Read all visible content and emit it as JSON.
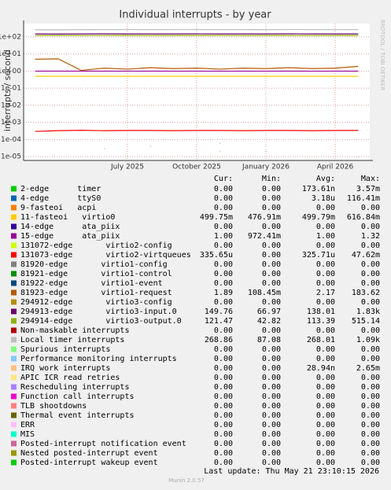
{
  "chart_data": {
    "type": "line",
    "title": "Individual interrupts - by year",
    "y_label": "interrupts / second",
    "side_label": "RRDTOOL / TOBI OETIKER",
    "log_scale": true,
    "grid": true,
    "categories": [
      null,
      null,
      null,
      null,
      "July 2025",
      null,
      null,
      "October 2025",
      null,
      null,
      "January 2026",
      null,
      null,
      "April 2026",
      null
    ],
    "ylim": [
      6e-06,
      600
    ],
    "yticks": [
      {
        "value": 100,
        "label": "1e+02"
      },
      {
        "value": 10,
        "label": "1e+01"
      },
      {
        "value": 1,
        "label": "1e+00"
      },
      {
        "value": 0.1,
        "label": "1e-01"
      },
      {
        "value": 0.01,
        "label": "1e-02"
      },
      {
        "value": 0.001,
        "label": "1e-03"
      },
      {
        "value": 0.0001,
        "label": "1e-04"
      },
      {
        "value": 1e-05,
        "label": "1e-05"
      }
    ],
    "columns": [
      "Cur:",
      "Min:",
      "Avg:",
      "Max:"
    ],
    "series": [
      {
        "name": "2-edge      timer",
        "color": "#00cc00",
        "cur": "0.00",
        "min": "0.00",
        "avg": "173.61n",
        "max": "3.57m",
        "values": [
          null,
          null,
          null,
          null,
          1e-05,
          null,
          null,
          null,
          2e-05,
          null,
          2e-05,
          null,
          null,
          null,
          1e-05
        ]
      },
      {
        "name": "4-edge      ttyS0",
        "color": "#0066b3",
        "cur": "0.00",
        "min": "0.00",
        "avg": "3.18u",
        "max": "116.41m",
        "values": [
          null,
          null,
          null,
          3e-05,
          null,
          4e-05,
          null,
          null,
          6e-05,
          null,
          null,
          null,
          null,
          null,
          null
        ]
      },
      {
        "name": "9-fasteoi   acpi",
        "color": "#ff8000",
        "cur": "0.00",
        "min": "0.00",
        "avg": "0.00",
        "max": "0.00"
      },
      {
        "name": "11-fasteoi   virtio0",
        "color": "#ffcc00",
        "cur": "499.75m",
        "min": "476.91m",
        "avg": "499.79m",
        "max": "616.84m",
        "values": [
          0.5,
          0.5,
          0.5,
          0.5,
          0.5,
          0.5,
          0.5,
          0.5,
          0.5,
          0.5,
          0.5,
          0.5,
          0.5,
          0.5,
          0.5
        ]
      },
      {
        "name": "14-edge      ata_piix",
        "color": "#330099",
        "cur": "0.00",
        "min": "0.00",
        "avg": "0.00",
        "max": "0.00"
      },
      {
        "name": "15-edge      ata_piix",
        "color": "#990099",
        "cur": "1.00",
        "min": "972.41m",
        "avg": "1.00",
        "max": "1.32",
        "values": [
          1,
          1,
          1,
          1,
          1,
          1,
          1,
          1,
          1,
          1,
          1,
          1,
          1,
          1,
          1
        ]
      },
      {
        "name": "131072-edge       virtio2-config",
        "color": "#ccff00",
        "cur": "0.00",
        "min": "0.00",
        "avg": "0.00",
        "max": "0.00"
      },
      {
        "name": "131073-edge       virtio2-virtqueues",
        "color": "#ff0000",
        "cur": "335.65u",
        "min": "0.00",
        "avg": "325.71u",
        "max": "47.62m",
        "values": [
          0.0003,
          0.00033,
          0.00035,
          0.00033,
          0.00034,
          0.00034,
          0.00033,
          0.00034,
          0.00034,
          0.00033,
          0.00034,
          0.00034,
          0.00033,
          0.00034,
          0.00034
        ]
      },
      {
        "name": "81920-edge       virtio1-config",
        "color": "#808080",
        "cur": "0.00",
        "min": "0.00",
        "avg": "0.00",
        "max": "0.00"
      },
      {
        "name": "81921-edge       virtio1-control",
        "color": "#008f00",
        "cur": "0.00",
        "min": "0.00",
        "avg": "0.00",
        "max": "0.00"
      },
      {
        "name": "81922-edge       virtio1-event",
        "color": "#00487d",
        "cur": "0.00",
        "min": "0.00",
        "avg": "0.00",
        "max": "0.00"
      },
      {
        "name": "81923-edge       virtio1-request",
        "color": "#b35a00",
        "cur": "1.89",
        "min": "108.45m",
        "avg": "2.17",
        "max": "183.62",
        "values": [
          5,
          5.2,
          1.1,
          1.5,
          1.3,
          1.6,
          1.4,
          1.5,
          1.3,
          1.5,
          1.4,
          1.6,
          1.4,
          1.5,
          1.9
        ]
      },
      {
        "name": "294912-edge       virtio3-config",
        "color": "#b38f00",
        "cur": "0.00",
        "min": "0.00",
        "avg": "0.00",
        "max": "0.00"
      },
      {
        "name": "294913-edge       virtio3-input.0",
        "color": "#6b006b",
        "cur": "149.76",
        "min": "66.97",
        "avg": "138.01",
        "max": "1.83k",
        "values": [
          150,
          148,
          150,
          152,
          150,
          149,
          150,
          151,
          150,
          150,
          150,
          152,
          149,
          150,
          150
        ]
      },
      {
        "name": "294914-edge       virtio3-output.0",
        "color": "#8fb300",
        "cur": "121.47",
        "min": "42.82",
        "avg": "113.39",
        "max": "515.14",
        "values": [
          120,
          121,
          120,
          122,
          121,
          120,
          121,
          121,
          122,
          120,
          121,
          121,
          120,
          121,
          121
        ]
      },
      {
        "name": "Non-maskable interrupts",
        "color": "#b30000",
        "cur": "0.00",
        "min": "0.00",
        "avg": "0.00",
        "max": "0.00"
      },
      {
        "name": "Local timer interrupts",
        "color": "#bebebe",
        "cur": "268.86",
        "min": "87.08",
        "avg": "268.01",
        "max": "1.09k",
        "values": [
          260,
          260,
          265,
          268,
          270,
          268,
          266,
          270,
          268,
          268,
          265,
          270,
          268,
          266,
          268
        ]
      },
      {
        "name": "Spurious interrupts",
        "color": "#80ff80",
        "cur": "0.00",
        "min": "0.00",
        "avg": "0.00",
        "max": "0.00"
      },
      {
        "name": "Performance monitoring interrupts",
        "color": "#80c9ff",
        "cur": "0.00",
        "min": "0.00",
        "avg": "0.00",
        "max": "0.00"
      },
      {
        "name": "IRQ work interrupts",
        "color": "#ffc080",
        "cur": "0.00",
        "min": "0.00",
        "avg": "28.94n",
        "max": "2.65m"
      },
      {
        "name": "APIC ICR read retries",
        "color": "#ffe680",
        "cur": "0.00",
        "min": "0.00",
        "avg": "0.00",
        "max": "0.00"
      },
      {
        "name": "Rescheduling interrupts",
        "color": "#aa80ff",
        "cur": "0.00",
        "min": "0.00",
        "avg": "0.00",
        "max": "0.00"
      },
      {
        "name": "Function call interrupts",
        "color": "#ee00cc",
        "cur": "0.00",
        "min": "0.00",
        "avg": "0.00",
        "max": "0.00"
      },
      {
        "name": "TLB shootdowns",
        "color": "#ff8080",
        "cur": "0.00",
        "min": "0.00",
        "avg": "0.00",
        "max": "0.00"
      },
      {
        "name": "Thermal event interrupts",
        "color": "#666600",
        "cur": "0.00",
        "min": "0.00",
        "avg": "0.00",
        "max": "0.00"
      },
      {
        "name": "ERR",
        "color": "#ffbfff",
        "cur": "0.00",
        "min": "0.00",
        "avg": "0.00",
        "max": "0.00"
      },
      {
        "name": "MIS",
        "color": "#00ffcc",
        "cur": "0.00",
        "min": "0.00",
        "avg": "0.00",
        "max": "0.00"
      },
      {
        "name": "Posted-interrupt notification event",
        "color": "#cc6699",
        "cur": "0.00",
        "min": "0.00",
        "avg": "0.00",
        "max": "0.00"
      },
      {
        "name": "Nested posted-interrupt event",
        "color": "#999900",
        "cur": "0.00",
        "min": "0.00",
        "avg": "0.00",
        "max": "0.00"
      },
      {
        "name": "Posted-interrupt wakeup event",
        "color": "#00cc00",
        "cur": "0.00",
        "min": "0.00",
        "avg": "0.00",
        "max": "0.00"
      }
    ],
    "last_update": "Last update: Thu May 21 23:10:15 2026",
    "footer": "Munin 2.0.57"
  }
}
